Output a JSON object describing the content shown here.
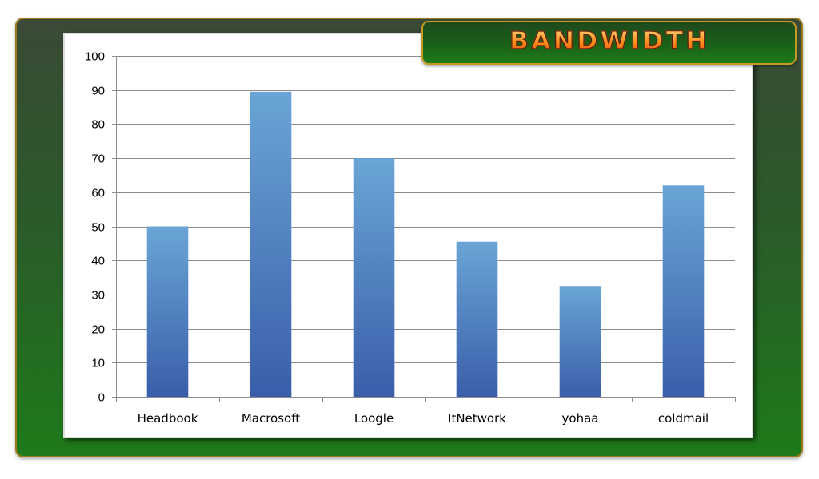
{
  "colors": {
    "bar_top": "#6aa5d6",
    "bar_bottom": "#3a5eaa",
    "gridline": "#8c8c8c",
    "axis": "#8c8c8c",
    "title_fill": "#ff8c1a",
    "frame_green": "#1e7a1a"
  },
  "chart_data": {
    "type": "bar",
    "title": "BANDWIDTH",
    "categories": [
      "Headbook",
      "Macrosoft",
      "Loogle",
      "ItNetwork",
      "yohaa",
      "coldmail"
    ],
    "values": [
      50,
      89.5,
      70,
      45.5,
      32.5,
      62
    ],
    "ylim": [
      0,
      100
    ],
    "yticks": [
      "0",
      "10",
      "20",
      "30",
      "40",
      "50",
      "60",
      "70",
      "80",
      "90",
      "100"
    ],
    "xlabel": "",
    "ylabel": "",
    "grid": true,
    "legend": "none"
  }
}
